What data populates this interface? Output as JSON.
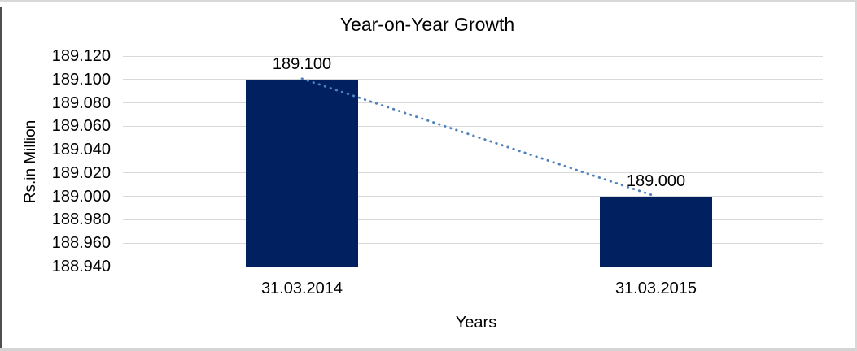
{
  "chart_data": {
    "type": "bar",
    "title": "Year-on-Year Growth",
    "xlabel": "Years",
    "ylabel": "Rs.in Million",
    "categories": [
      "31.03.2014",
      "31.03.2015"
    ],
    "values": [
      189.1,
      189.0
    ],
    "data_labels": [
      "189.100",
      "189.000"
    ],
    "ytick_labels": [
      "189.120",
      "189.100",
      "189.080",
      "189.060",
      "189.040",
      "189.020",
      "189.000",
      "188.980",
      "188.960",
      "188.940"
    ],
    "ylim": [
      188.94,
      189.12
    ],
    "ytick_step": 0.02,
    "grid": true,
    "legend": "none",
    "trendline": {
      "style": "dotted",
      "from": 189.1,
      "to": 189.0
    },
    "colors": {
      "bar": "#002060",
      "trendline": "#4f81bd",
      "gridline": "#d9d9d9",
      "text": "#000000"
    }
  }
}
